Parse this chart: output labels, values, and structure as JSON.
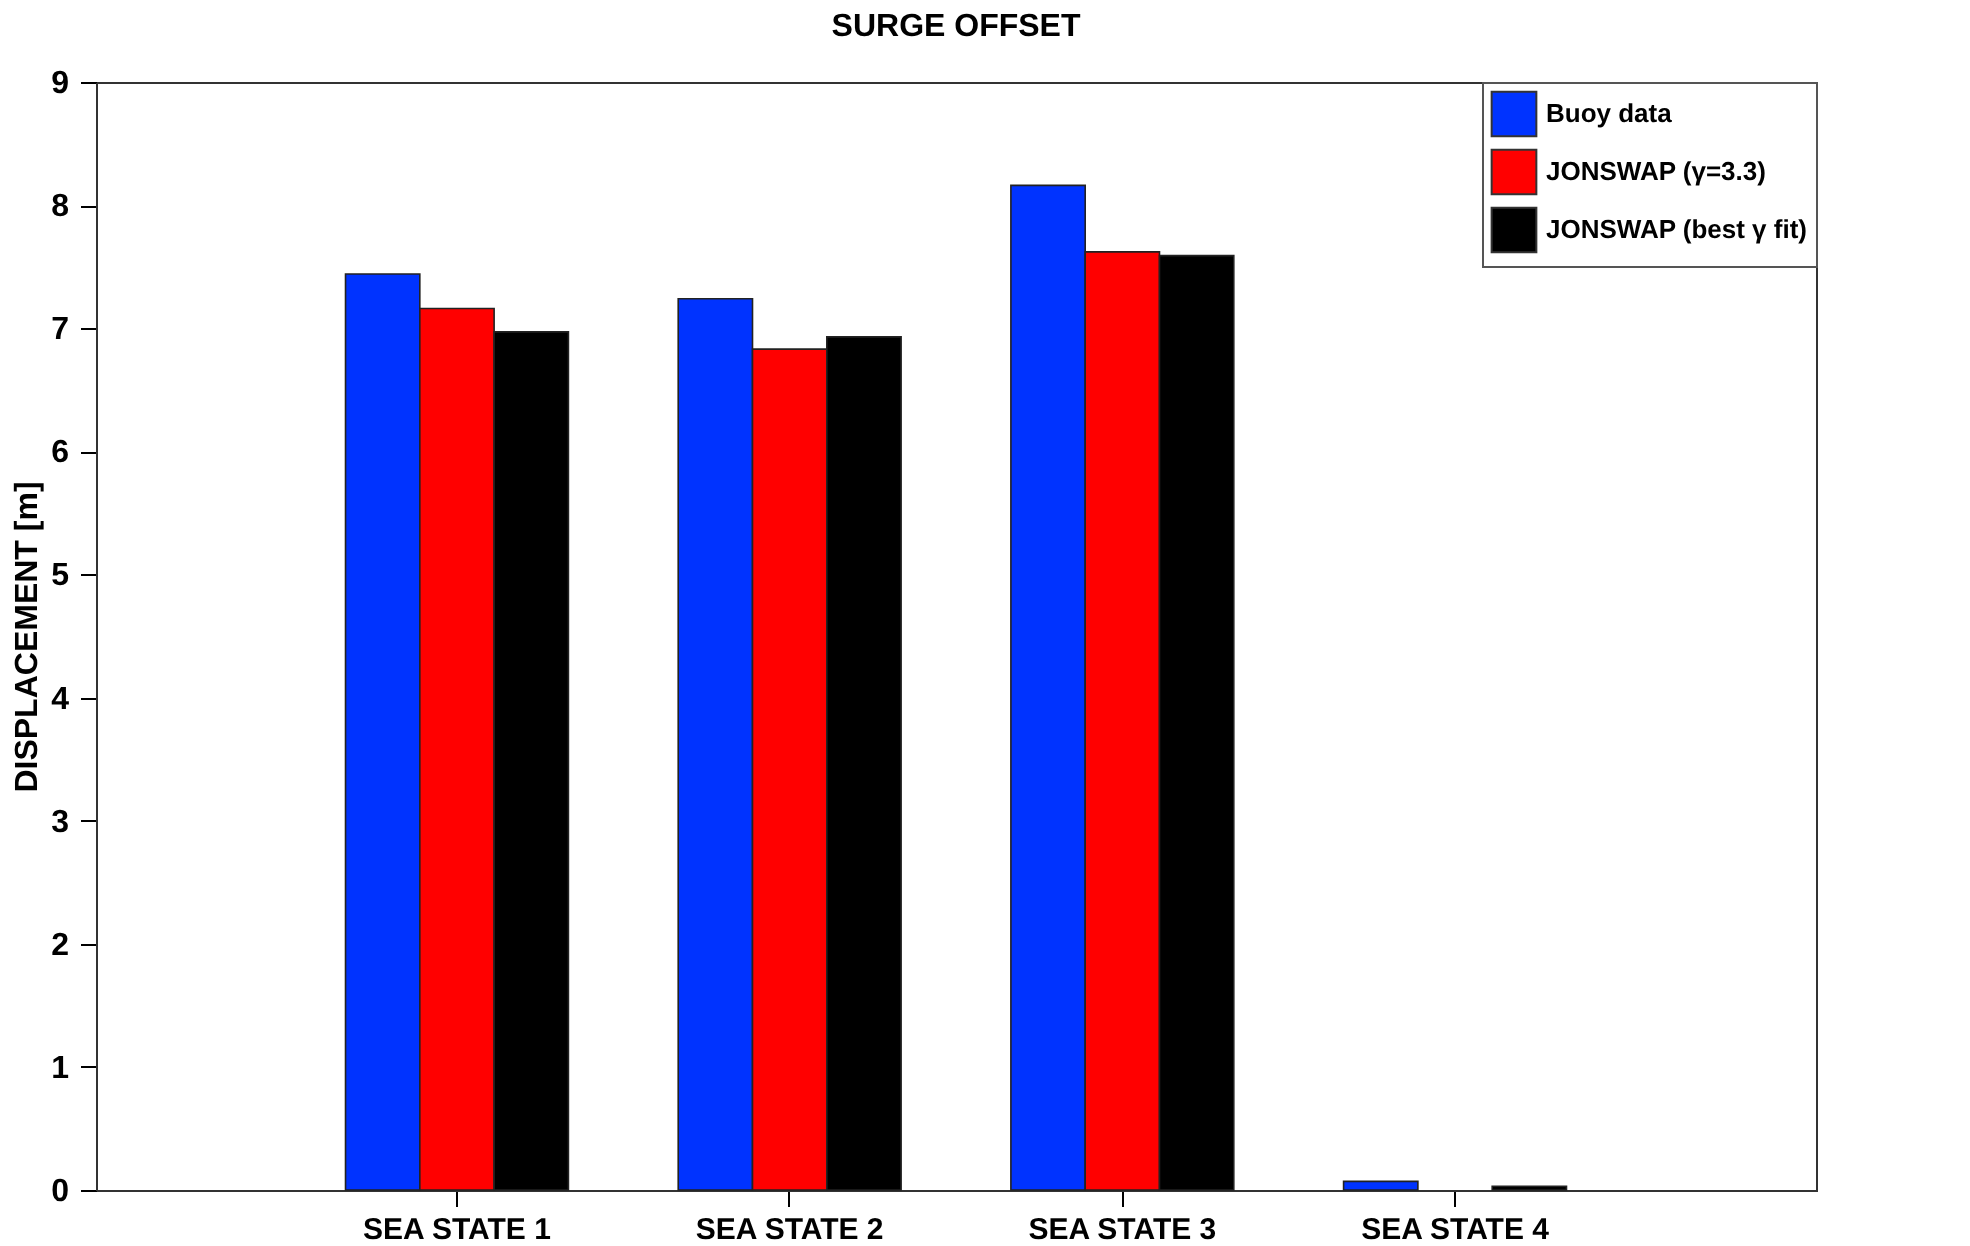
{
  "chart_data": {
    "type": "bar",
    "title": "SURGE OFFSET",
    "ylabel": "DISPLACEMENT [m]",
    "categories": [
      "SEA STATE 1",
      "SEA STATE 2",
      "SEA STATE 3",
      "SEA STATE 4"
    ],
    "series": [
      {
        "name": "Buoy data",
        "color": "#0033ff",
        "values": [
          7.44,
          7.24,
          8.16,
          0.07
        ]
      },
      {
        "name": "JONSWAP (γ=3.3)",
        "color": "#ff0000",
        "values": [
          7.16,
          6.83,
          7.62,
          null
        ]
      },
      {
        "name": "JONSWAP (best γ fit)",
        "color": "#000000",
        "values": [
          6.97,
          6.93,
          7.59,
          0.03
        ]
      }
    ],
    "ylim": [
      0,
      9
    ],
    "yticks": [
      0,
      1,
      2,
      3,
      4,
      5,
      6,
      7,
      8,
      9
    ],
    "grid": false,
    "legend": "top right"
  }
}
